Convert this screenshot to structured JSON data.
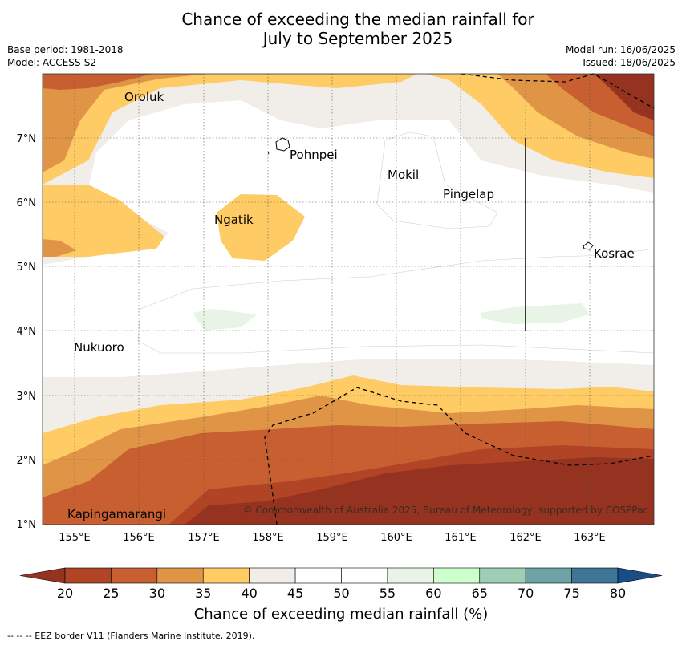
{
  "title_line1": "Chance of exceeding the median rainfall for",
  "title_line2": "July to September 2025",
  "meta_left": [
    "Base period: 1981-2018",
    "Model: ACCESS-S2"
  ],
  "meta_right": [
    "Model run: 16/06/2025",
    "Issued: 18/06/2025"
  ],
  "lon_ticks": [
    "155°E",
    "156°E",
    "157°E",
    "158°E",
    "159°E",
    "160°E",
    "161°E",
    "162°E",
    "163°E"
  ],
  "lat_ticks": [
    "7°N",
    "6°N",
    "5°N",
    "4°N",
    "3°N",
    "2°N",
    "1°N"
  ],
  "places": [
    {
      "name": "Oroluk"
    },
    {
      "name": "Pohnpei"
    },
    {
      "name": "Mokil"
    },
    {
      "name": "Pingelap"
    },
    {
      "name": "Ngatik"
    },
    {
      "name": "Kosrae"
    },
    {
      "name": "Nukuoro"
    },
    {
      "name": "Kapingamarangi"
    }
  ],
  "copyright": "© Commonwealth of Australia 2025, Bureau of Meteorology, supported by COSPPac",
  "colorbar": {
    "ticks": [
      "20",
      "25",
      "30",
      "35",
      "40",
      "45",
      "50",
      "55",
      "60",
      "65",
      "70",
      "75",
      "80"
    ],
    "colors": [
      "#963320",
      "#b04424",
      "#c85f30",
      "#e09546",
      "#fecb64",
      "#f1ede8",
      "#ffffff",
      "#ffffff",
      "#e8f5e6",
      "#ccffcc",
      "#9dcfb7",
      "#6ea3a6",
      "#3f7596",
      "#1a4c86"
    ],
    "label": "Chance of exceeding median rainfall (%)"
  },
  "footnote": "-- -- -- EEZ border V11 (Flanders Marine Institute, 2019)."
}
